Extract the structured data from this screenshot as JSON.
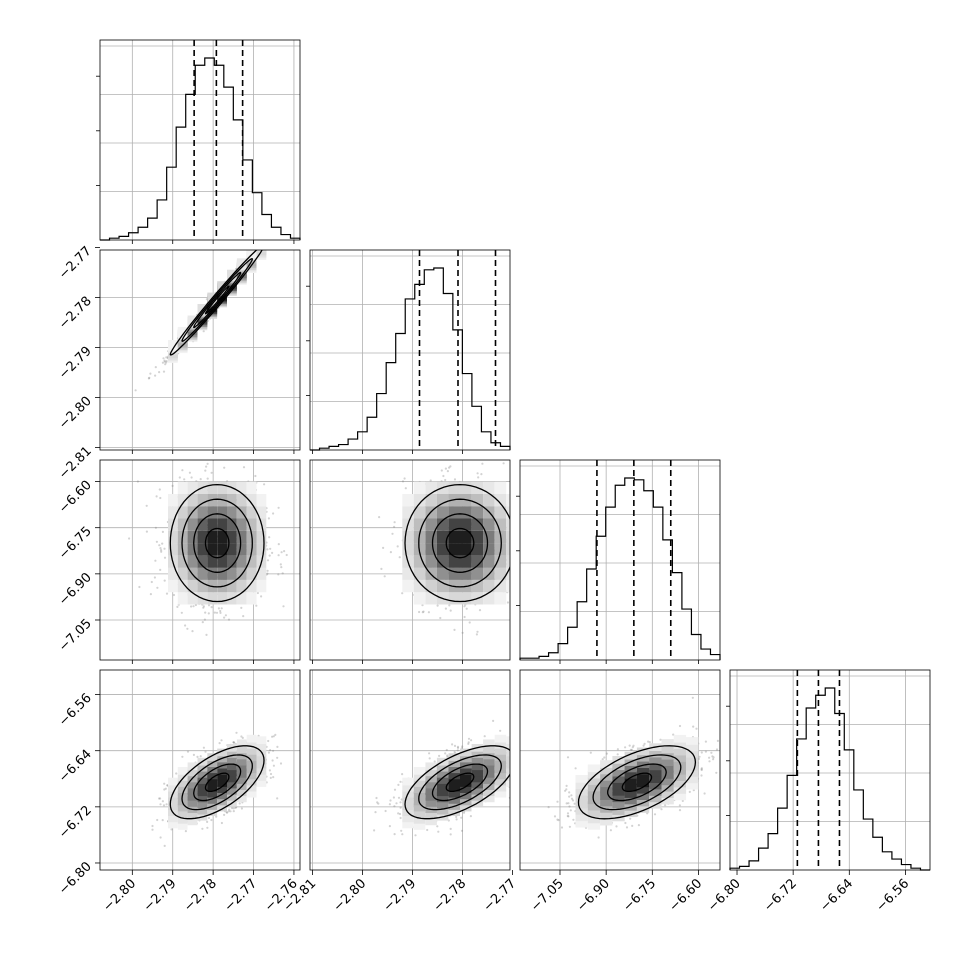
{
  "chart_data": {
    "type": "corner",
    "title": "",
    "n_params": 4,
    "params": [
      {
        "mean": -2.779,
        "sd": 0.0058,
        "range": [
          -2.808,
          -2.7585
        ],
        "ticks": [
          "-2.80",
          "-2.79",
          "-2.78",
          "-2.77",
          "-2.76"
        ],
        "tick_values": [
          -2.8,
          -2.79,
          -2.78,
          -2.77,
          -2.76
        ],
        "quantiles": [
          -2.7847,
          -2.7792,
          -2.7727
        ]
      },
      {
        "mean": -2.7805,
        "sd": 0.0055,
        "range": [
          -2.8105,
          -2.7705
        ],
        "ticks": [
          "-2.81",
          "-2.80",
          "-2.79",
          "-2.78",
          "-2.77"
        ],
        "tick_values": [
          -2.81,
          -2.8,
          -2.79,
          -2.78,
          -2.77
        ],
        "quantiles": [
          -2.7886,
          -2.7809,
          -2.7734
        ]
      },
      {
        "mean": -6.8,
        "sd": 0.095,
        "range": [
          -7.18,
          -6.53
        ],
        "ticks": [
          "-7.05",
          "-6.90",
          "-6.75",
          "-6.60"
        ],
        "tick_values": [
          -7.05,
          -6.9,
          -6.75,
          -6.6
        ],
        "quantiles": [
          -6.93,
          -6.81,
          -6.69
        ]
      },
      {
        "mean": -6.685,
        "sd": 0.026,
        "range": [
          -6.81,
          -6.525
        ],
        "ticks": [
          "-6.80",
          "-6.72",
          "-6.64",
          "-6.56"
        ],
        "tick_values": [
          -6.8,
          -6.72,
          -6.64,
          -6.56
        ],
        "quantiles": [
          -6.714,
          -6.684,
          -6.654
        ]
      }
    ],
    "histograms": [
      {
        "param": 0,
        "counts": [
          0,
          1,
          2,
          4,
          7,
          12,
          22,
          40,
          62,
          80,
          96,
          100,
          96,
          84,
          66,
          44,
          26,
          14,
          7,
          3,
          1
        ]
      },
      {
        "param": 1,
        "counts": [
          0,
          1,
          2,
          3,
          6,
          10,
          18,
          31,
          48,
          64,
          83,
          91,
          99,
          100,
          86,
          66,
          42,
          24,
          10,
          4,
          2
        ]
      },
      {
        "param": 2,
        "counts": [
          1,
          1,
          2,
          4,
          9,
          18,
          32,
          50,
          68,
          84,
          96,
          100,
          99,
          93,
          84,
          66,
          48,
          28,
          14,
          6,
          3
        ]
      },
      {
        "param": 3,
        "counts": [
          1,
          2,
          5,
          12,
          20,
          34,
          52,
          72,
          89,
          96,
          100,
          86,
          66,
          44,
          28,
          18,
          10,
          6,
          3,
          1,
          0
        ]
      }
    ],
    "pairs": [
      {
        "x_param": 0,
        "y_param": 1,
        "correlation": 0.99
      },
      {
        "x_param": 0,
        "y_param": 2,
        "correlation": 0.0
      },
      {
        "x_param": 1,
        "y_param": 2,
        "correlation": 0.0
      },
      {
        "x_param": 0,
        "y_param": 3,
        "correlation": 0.6
      },
      {
        "x_param": 1,
        "y_param": 3,
        "correlation": 0.6
      },
      {
        "x_param": 2,
        "y_param": 3,
        "correlation": 0.55
      }
    ],
    "contour_levels_sigma": [
      0.5,
      1.0,
      1.5,
      2.0
    ],
    "grid": true,
    "colors": {
      "points": "#808080",
      "lines": "#000000",
      "grid": "#b0b0b0"
    }
  }
}
